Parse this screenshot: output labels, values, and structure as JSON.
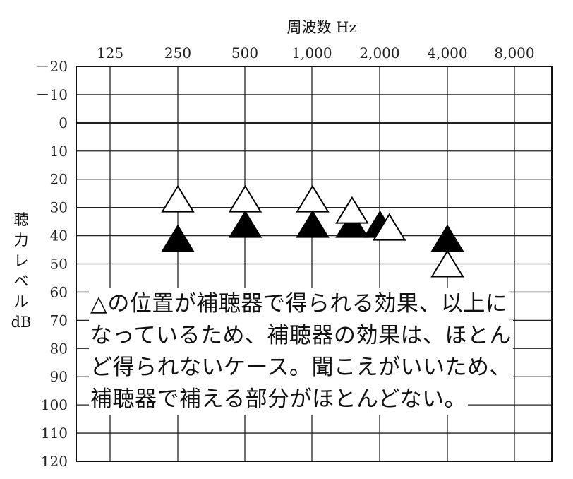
{
  "chart_data": {
    "type": "scatter",
    "title": "周波数 Hz",
    "ylabel_chars": [
      "聴",
      "力",
      "レ",
      "ベ",
      "ル",
      "dB"
    ],
    "x_ticks": [
      "125",
      "250",
      "500",
      "1,000",
      "2,000",
      "4,000",
      "8,000"
    ],
    "y_ticks": [
      "－20",
      "－10",
      "0",
      "10",
      "20",
      "30",
      "40",
      "50",
      "60",
      "70",
      "80",
      "90",
      "100",
      "110",
      "120"
    ],
    "ylim": [
      -20,
      120
    ],
    "y_inverted": true,
    "x_scale": "log2",
    "grid": true,
    "series": [
      {
        "marker": "open-triangle",
        "points": [
          {
            "x": 250,
            "y": 27
          },
          {
            "x": 500,
            "y": 27
          },
          {
            "x": 1000,
            "y": 27
          },
          {
            "x": 1500,
            "y": 31
          },
          {
            "x": 2200,
            "y": 37
          },
          {
            "x": 4000,
            "y": 50
          }
        ]
      },
      {
        "marker": "filled-triangle",
        "points": [
          {
            "x": 250,
            "y": 41
          },
          {
            "x": 500,
            "y": 36
          },
          {
            "x": 1000,
            "y": 36
          },
          {
            "x": 1500,
            "y": 36
          },
          {
            "x": 2000,
            "y": 36
          },
          {
            "x": 4000,
            "y": 41
          }
        ]
      }
    ],
    "annotation_lines": [
      "△の位置が補聴器で得られる効果、以上に",
      "なっているため、補聴器の効果は、ほとん",
      "ど得られないケース。聞こえがいいため、",
      "補聴器で補える部分がほとんどない。"
    ]
  }
}
